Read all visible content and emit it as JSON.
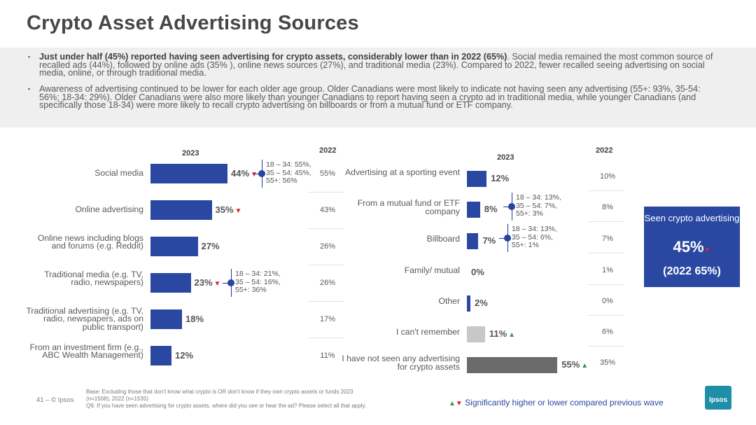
{
  "title": "Crypto Asset Advertising Sources",
  "summary": {
    "bullet1_bold": "Just under half (45%) reported having seen advertising for crypto assets, considerably lower than in 2022 (65%)",
    "bullet1_rest": ". Social media remained the most common source of recalled ads (44%), followed by online ads (35% ), online news sources (27%), and traditional media (23%). Compared to 2022, fewer recalled seeing advertising on social media, online, or through traditional media.",
    "bullet2": "Awareness of advertising continued to be lower for each older age group. Older Canadians were most likely to indicate not having seen any advertising (55+: 93%, 35-54: 56%; 18-34: 29%). Older Canadians were also more likely than younger Canadians to report having seen a crypto ad in traditional media, while younger Canadians (and specifically those 18-34) were more likely to recall crypto advertising on billboards or from a mutual fund or ETF company."
  },
  "colors": {
    "bar_primary": "#2a47a2",
    "bar_light": "#c8c8c8",
    "bar_dark": "#6b6b6b",
    "down": "#d9262c",
    "up": "#2e9a4a",
    "box": "#2a47a2"
  },
  "chart_data": [
    {
      "type": "bar",
      "orientation": "horizontal",
      "header_2023": "2023",
      "header_2022": "2022",
      "categories": [
        "Social media",
        "Online advertising",
        "Online news including blogs and forums (e.g. Reddit)",
        "Traditional media (e.g. TV, radio, newspapers)",
        "Traditional advertising (e.g. TV, radio, newspapers, ads on public transport)",
        "From an investment firm (e.g., ABC Wealth Management)"
      ],
      "values": [
        44,
        35,
        27,
        23,
        18,
        12
      ],
      "labels": [
        "44%",
        "35%",
        "27%",
        "23%",
        "18%",
        "12%"
      ],
      "change": [
        "down",
        "down",
        "",
        "down",
        "",
        ""
      ],
      "values_2022": [
        "55%",
        "43%",
        "26%",
        "26%",
        "17%",
        "11%"
      ],
      "age_notes": [
        [
          "18 – 34: 55%,",
          "35 – 54: 45%,",
          "55+: 56%"
        ],
        null,
        null,
        [
          "18 – 34: 21%,",
          "35 – 54: 16%,",
          "55+: 36%"
        ],
        null,
        null
      ]
    },
    {
      "type": "bar",
      "orientation": "horizontal",
      "header_2023": "2023",
      "header_2022": "2022",
      "categories": [
        "Advertising at a sporting event",
        "From a mutual fund or ETF company",
        "Billboard",
        "Family/ mutual",
        "Other",
        "I can't remember",
        "I have not seen any advertising for crypto assets"
      ],
      "values": [
        12,
        8,
        7,
        0,
        2,
        11,
        55
      ],
      "labels": [
        "12%",
        "8%",
        "7%",
        "0%",
        "2%",
        "11%",
        "55%"
      ],
      "change": [
        "",
        "",
        "",
        "",
        "",
        "up",
        "up"
      ],
      "bar_style": [
        "primary",
        "primary",
        "primary",
        "primary",
        "primary",
        "light",
        "dark"
      ],
      "values_2022": [
        "10%",
        "8%",
        "7%",
        "1%",
        "0%",
        "6%",
        "35%"
      ],
      "age_notes": [
        null,
        [
          "18 – 34: 13%,",
          "35 – 54: 7%,",
          "55+: 3%"
        ],
        [
          "18 – 34: 13%,",
          "35 – 54: 6%,",
          "55+: 1%"
        ],
        null,
        null,
        null,
        null
      ]
    }
  ],
  "seen_box": {
    "label": "Seen crypto advertising",
    "value": "45%",
    "sub": "(2022 65%)"
  },
  "footer": {
    "page": "41 –  © Ipsos",
    "note_line1": "Base: Excluding those that don't know what crypto is OR don't know if they own crypto assets or funds 2023",
    "note_line2": "(n=1508); 2022 (n=1535)",
    "note_line3": "Q9. If you have seen advertising for crypto assets, where did you see or hear the ad? Please select all that apply.",
    "legend": "Significantly higher or lower compared previous wave",
    "logo": "Ipsos"
  }
}
